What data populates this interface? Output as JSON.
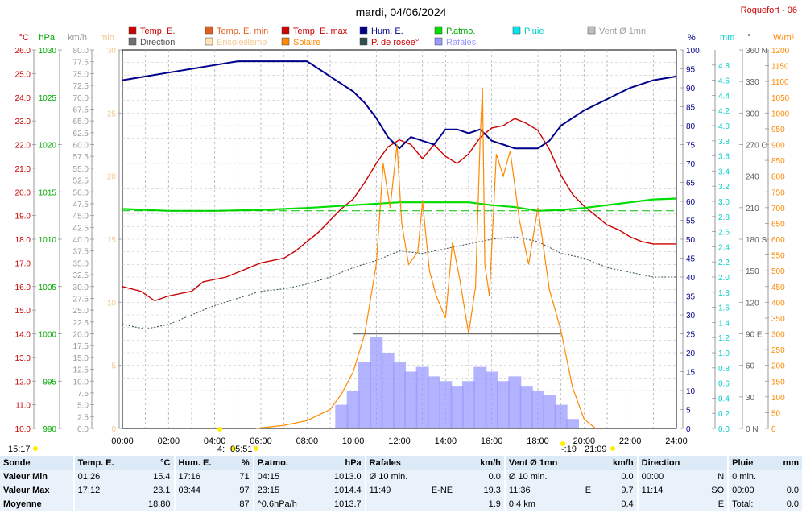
{
  "header": {
    "title": "mardi, 04/06/2024",
    "station": "Roquefort - 06"
  },
  "legend": [
    {
      "label": "Temp. E.",
      "color": "#cc0000",
      "text_color": "#cc0000"
    },
    {
      "label": "Temp. E. min",
      "color": "#e06020",
      "text_color": "#e06020"
    },
    {
      "label": "Temp. E. max",
      "color": "#cc0000",
      "text_color": "#cc0000"
    },
    {
      "label": "Hum. E.",
      "color": "#00008b",
      "text_color": "#00008b"
    },
    {
      "label": "P.atmo.",
      "color": "#00dd00",
      "text_color": "#00aa00"
    },
    {
      "label": "Pluie",
      "color": "#00e5ee",
      "text_color": "#00cccc"
    },
    {
      "label": "Vent Ø 1mn",
      "color": "#c0c0c0",
      "text_color": "#a0a0a0"
    },
    {
      "label": "Direction",
      "color": "#707070",
      "text_color": "#505050"
    },
    {
      "label": "Ensoleilleme",
      "color": "#ffe4b5",
      "text_color": "#f0c890"
    },
    {
      "label": "Solaire",
      "color": "#ff8800",
      "text_color": "#ff8800"
    },
    {
      "label": "P. de rosée°",
      "color": "#2f4f4f",
      "text_color": "#cc0000"
    },
    {
      "label": "Rafales",
      "color": "#9999ff",
      "text_color": "#9999ff"
    }
  ],
  "axes_left": [
    {
      "unit": "°C",
      "color": "#cc0000",
      "ticks": [
        "26.0",
        "25.0",
        "24.0",
        "23.0",
        "22.0",
        "21.0",
        "20.0",
        "19.0",
        "18.0",
        "17.0",
        "16.0",
        "15.0",
        "14.0",
        "13.0",
        "12.0",
        "11.0",
        "10.0"
      ]
    },
    {
      "unit": "hPa",
      "color": "#00aa00",
      "ticks": [
        "1030",
        "1025",
        "1020",
        "1015",
        "1010",
        "1005",
        "1000",
        "995",
        "990"
      ]
    },
    {
      "unit": "km/h",
      "color": "#999999",
      "ticks": [
        "80.0",
        "77.5",
        "75.0",
        "72.5",
        "70.0",
        "67.5",
        "65.0",
        "62.5",
        "60.0",
        "57.5",
        "55.0",
        "52.5",
        "50.0",
        "47.5",
        "45.0",
        "42.5",
        "40.0",
        "37.5",
        "35.0",
        "32.5",
        "30.0",
        "27.5",
        "25.0",
        "22.5",
        "20.0",
        "17.5",
        "15.0",
        "12.5",
        "10.0",
        "7.5",
        "5.0",
        "2.5",
        "0.0"
      ]
    },
    {
      "unit": "min",
      "color": "#f0c890",
      "ticks": [
        "30",
        "25",
        "20",
        "15",
        "10",
        "5",
        "0"
      ]
    }
  ],
  "axes_right": [
    {
      "unit": "%",
      "color": "#00008b",
      "ticks": [
        "100",
        "95",
        "90",
        "85",
        "80",
        "75",
        "70",
        "65",
        "60",
        "55",
        "50",
        "45",
        "40",
        "35",
        "30",
        "25",
        "20",
        "15",
        "10",
        "5",
        "0"
      ]
    },
    {
      "unit": "mm",
      "color": "#00cccc",
      "ticks": [
        "4.8",
        "4.6",
        "4.4",
        "4.2",
        "4.0",
        "3.8",
        "3.6",
        "3.4",
        "3.2",
        "3.0",
        "2.8",
        "2.6",
        "2.4",
        "2.2",
        "2.0",
        "1.8",
        "1.6",
        "1.4",
        "1.2",
        "1.0",
        "0.8",
        "0.6",
        "0.4",
        "0.2",
        "0.0"
      ]
    },
    {
      "unit": "°",
      "color": "#606060",
      "ticks": [
        "360 N",
        "330",
        "300",
        "270 O",
        "240",
        "210",
        "180 S",
        "150",
        "120",
        "90  E",
        "60",
        "30",
        "0   N"
      ]
    },
    {
      "unit": "W/m²",
      "color": "#ff8800",
      "ticks": [
        "1200",
        "1150",
        "1100",
        "1050",
        "1000",
        "950",
        "900",
        "850",
        "800",
        "750",
        "700",
        "650",
        "600",
        "550",
        "500",
        "450",
        "400",
        "350",
        "300",
        "250",
        "200",
        "150",
        "100",
        "50",
        "0"
      ]
    }
  ],
  "x_ticks": [
    "00:00",
    "02:00",
    "04:00",
    "06:00",
    "08:00",
    "10:00",
    "12:00",
    "14:00",
    "16:00",
    "18:00",
    "20:00",
    "22:00",
    "24:00"
  ],
  "sun_markers": {
    "moon_rise": "15:17",
    "sunrise": "05:51",
    "sunset": "21:09",
    "moon_set_a": "4:",
    "moon_set_b": "-:19"
  },
  "chart_data": {
    "type": "line",
    "x_range_hours": [
      0,
      24
    ],
    "series": [
      {
        "name": "Temp. E.",
        "unit": "°C",
        "x": [
          0,
          0.8,
          1.4,
          2,
          3,
          3.5,
          4.5,
          5,
          5.5,
          6,
          6.5,
          7,
          7.5,
          8,
          8.5,
          9,
          9.5,
          10,
          10.5,
          11,
          11.5,
          12,
          12.5,
          13,
          13.5,
          14,
          14.5,
          15,
          15.5,
          16,
          16.5,
          17,
          17.5,
          18,
          18.5,
          19,
          19.5,
          20,
          20.5,
          21,
          21.5,
          22,
          22.5,
          23,
          24
        ],
        "y": [
          16.0,
          15.8,
          15.4,
          15.6,
          15.8,
          16.2,
          16.4,
          16.6,
          16.8,
          17.0,
          17.1,
          17.2,
          17.5,
          17.9,
          18.3,
          18.8,
          19.3,
          19.7,
          20.4,
          21.2,
          21.9,
          22.2,
          22.0,
          21.4,
          22.0,
          21.5,
          21.2,
          21.6,
          22.3,
          22.7,
          22.8,
          23.1,
          22.9,
          22.6,
          21.8,
          20.7,
          19.9,
          19.4,
          19.0,
          18.6,
          18.4,
          18.1,
          17.9,
          17.8,
          17.8
        ]
      },
      {
        "name": "Hum. E.",
        "unit": "%",
        "x": [
          0,
          1,
          2,
          3,
          4,
          5,
          6,
          7,
          8,
          8.5,
          9,
          9.5,
          10,
          10.5,
          11,
          11.5,
          12,
          12.5,
          13,
          13.5,
          14,
          14.5,
          15,
          15.5,
          16,
          16.5,
          17,
          17.5,
          18,
          18.5,
          19,
          19.5,
          20,
          21,
          22,
          23,
          24
        ],
        "y": [
          92,
          93,
          94,
          95,
          96,
          97,
          97,
          97,
          97,
          95,
          93,
          91,
          89,
          86,
          82,
          77,
          74,
          77,
          76,
          75,
          79,
          79,
          78,
          79,
          76,
          75,
          74,
          74,
          74,
          76,
          80,
          82,
          84,
          87,
          90,
          92,
          93
        ]
      },
      {
        "name": "P.atmo.",
        "unit": "hPa",
        "x": [
          0,
          2,
          4,
          6,
          8,
          10,
          12,
          14,
          15,
          16,
          17,
          18,
          19,
          20,
          21,
          22,
          23,
          24
        ],
        "y": [
          1013.2,
          1013.0,
          1013.0,
          1013.1,
          1013.3,
          1013.6,
          1013.9,
          1013.9,
          1013.9,
          1013.6,
          1013.4,
          1013.0,
          1013.1,
          1013.3,
          1013.6,
          1013.9,
          1014.2,
          1014.3
        ]
      },
      {
        "name": "P. de rosée°",
        "unit": "°C",
        "x": [
          0,
          1,
          2,
          3,
          4,
          5,
          6,
          7,
          8,
          9,
          10,
          11,
          12,
          13,
          14,
          15,
          16,
          17,
          18,
          19,
          20,
          21,
          22,
          23,
          24
        ],
        "y": [
          14.4,
          14.2,
          14.4,
          14.8,
          15.2,
          15.5,
          15.8,
          15.9,
          16.1,
          16.4,
          16.8,
          17.1,
          17.5,
          17.4,
          17.6,
          17.8,
          18.0,
          18.1,
          17.9,
          17.4,
          17.2,
          16.8,
          16.6,
          16.4,
          16.4
        ]
      },
      {
        "name": "Solaire",
        "unit": "W/m²",
        "x": [
          5.8,
          7,
          8,
          9,
          9.5,
          10,
          10.5,
          11,
          11.3,
          11.6,
          11.9,
          12.1,
          12.4,
          12.8,
          13,
          13.3,
          13.6,
          14,
          14.3,
          14.6,
          15,
          15.3,
          15.5,
          15.6,
          15.7,
          15.9,
          16.2,
          16.5,
          16.8,
          17.2,
          17.6,
          18,
          18.5,
          19,
          19.5,
          20,
          20.5
        ],
        "y": [
          0,
          10,
          25,
          60,
          110,
          180,
          300,
          520,
          840,
          700,
          900,
          650,
          520,
          560,
          720,
          500,
          420,
          350,
          590,
          480,
          300,
          450,
          920,
          1080,
          520,
          420,
          870,
          800,
          880,
          660,
          520,
          700,
          440,
          310,
          130,
          30,
          0
        ]
      },
      {
        "name": "Rafales",
        "unit": "km/h",
        "x": [
          9.5,
          10,
          10.5,
          11,
          11.5,
          12,
          12.5,
          13,
          13.5,
          14,
          14.5,
          15,
          15.5,
          16,
          16.5,
          17,
          17.5,
          18,
          18.5,
          19,
          19.5
        ],
        "y": [
          5,
          8,
          14,
          19.3,
          16,
          14,
          12,
          13,
          11,
          10,
          9,
          10,
          13,
          12,
          10,
          11,
          9,
          8,
          7,
          5,
          2
        ]
      },
      {
        "name": "Direction",
        "unit": "°",
        "x": [
          10,
          11,
          12,
          13,
          14,
          15,
          16,
          17,
          18,
          19
        ],
        "y": [
          90,
          90,
          90,
          90,
          90,
          90,
          90,
          90,
          90,
          90
        ]
      }
    ]
  },
  "stats": {
    "headers": {
      "sonde": "Sonde",
      "temp": "Temp. E.",
      "temp_unit": "°C",
      "hum": "Hum. E.",
      "hum_unit": "%",
      "patmo": "P.atmo.",
      "patmo_unit": "hPa",
      "rafales": "Rafales",
      "rafales_unit": "km/h",
      "vent": "Vent Ø 1mn",
      "vent_unit": "km/h",
      "direction": "Direction",
      "pluie": "Pluie",
      "pluie_unit": "mm"
    },
    "rows": [
      {
        "label": "Valeur Min",
        "temp_t": "01:26",
        "temp_v": "15.4",
        "hum_t": "17:16",
        "hum_v": "71",
        "patmo_t": "04:15",
        "patmo_v": "1013.0",
        "raf_t": "Ø 10 min.",
        "raf_d": "",
        "raf_v": "0.0",
        "vent_t": "Ø 10 min.",
        "vent_d": "",
        "vent_v": "0.0",
        "dir_t": "00:00",
        "dir_v": "N",
        "pluie_t": "0 min.",
        "pluie_v": ""
      },
      {
        "label": "Valeur Max",
        "temp_t": "17:12",
        "temp_v": "23.1",
        "hum_t": "03:44",
        "hum_v": "97",
        "patmo_t": "23:15",
        "patmo_v": "1014.4",
        "raf_t": "11:49",
        "raf_d": "E-NE",
        "raf_v": "19.3",
        "vent_t": "11:36",
        "vent_d": "E",
        "vent_v": "9.7",
        "dir_t": "11:14",
        "dir_v": "SO",
        "pluie_t": "00:00",
        "pluie_v": "0.0"
      },
      {
        "label": "Moyenne",
        "temp_t": "",
        "temp_v": "18.80",
        "hum_t": "",
        "hum_v": "87",
        "patmo_t": "^0.6hPa/h",
        "patmo_v": "1013.7",
        "raf_t": "",
        "raf_d": "",
        "raf_v": "1.9",
        "vent_t": "0.4 km",
        "vent_d": "",
        "vent_v": "0.4",
        "dir_t": "",
        "dir_v": "E",
        "pluie_t": "Total:",
        "pluie_v": "0.0"
      }
    ]
  }
}
